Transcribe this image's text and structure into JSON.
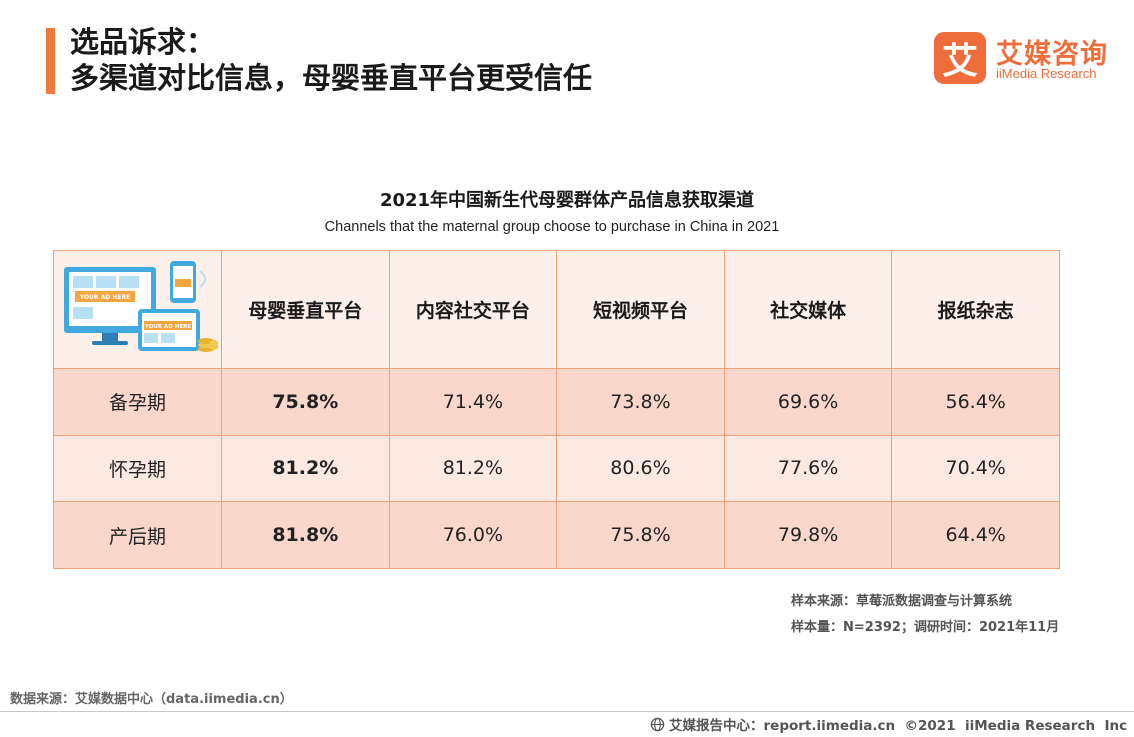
{
  "headline": {
    "line1": "选品诉求：",
    "line2": "多渠道对比信息，母婴垂直平台更受信任"
  },
  "logo": {
    "mark": "艾",
    "name_cn": "艾媒咨询",
    "name_en": "iiMedia Research"
  },
  "illustration": {
    "ad_label_1": "YOUR AD HERE",
    "ad_label_2": "YOUR AD HERE"
  },
  "chart_data": {
    "type": "table",
    "title": "2021年中国新生代母婴群体产品信息获取渠道",
    "subtitle": "Channels that the maternal group choose to purchase in China in 2021",
    "columns": [
      "母婴垂直平台",
      "内容社交平台",
      "短视频平台",
      "社交媒体",
      "报纸杂志"
    ],
    "rows": [
      {
        "label": "备孕期",
        "values": [
          "75.8%",
          "71.4%",
          "73.8%",
          "69.6%",
          "56.4%"
        ]
      },
      {
        "label": "怀孕期",
        "values": [
          "81.2%",
          "81.2%",
          "80.6%",
          "77.6%",
          "70.4%"
        ]
      },
      {
        "label": "产后期",
        "values": [
          "81.8%",
          "76.0%",
          "75.8%",
          "79.8%",
          "64.4%"
        ]
      }
    ],
    "highlight_column": "母婴垂直平台"
  },
  "notes": {
    "sample_source": "样本来源：草莓派数据调查与计算系统",
    "sample_size": "样本量：N=2392；调研时间：2021年11月"
  },
  "source": "数据来源：艾媒数据中心（data.iimedia.cn）",
  "footer": "艾媒报告中心：report.iimedia.cn  ©2021  iiMedia Research  Inc",
  "colors": {
    "accent": "#f07a3c",
    "logo": "#ee6d3a",
    "table_border": "#f0a077",
    "header_bg": "#fdefea",
    "row_dark": "#f9d8cb",
    "row_light": "#fce9e2"
  }
}
